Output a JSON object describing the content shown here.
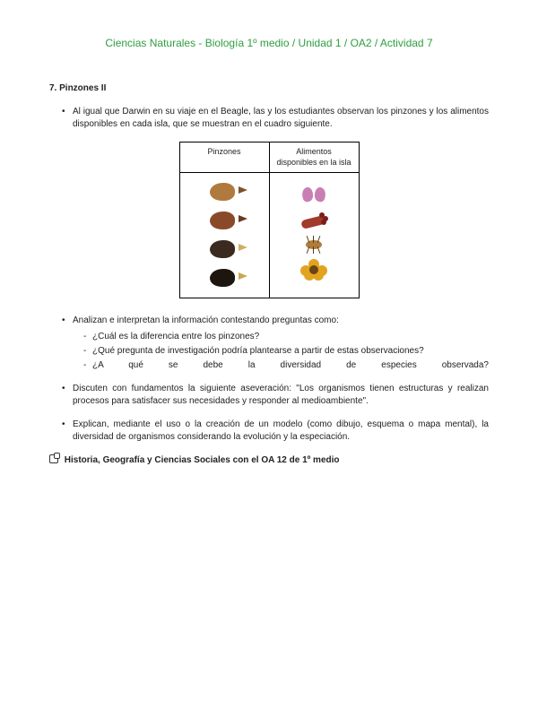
{
  "header": {
    "text": "Ciencias Naturales - Biología 1º medio / Unidad 1 / OA2 / Actividad 7",
    "color": "#2e9e3f"
  },
  "section": {
    "number": "7.",
    "title": "Pinzones II"
  },
  "bullets": {
    "intro": "Al igual que Darwin en su viaje en el Beagle, las y los estudiantes observan los pinzones y los alimentos disponibles en cada isla, que se muestran en el cuadro siguiente.",
    "analyze_lead": "Analizan e interpretan la información contestando preguntas como:",
    "questions": {
      "q1": "¿Cuál es la diferencia entre los pinzones?",
      "q2": "¿Qué pregunta de investigación podría plantearse a partir de estas observaciones?",
      "q3": "¿A qué se debe la diversidad de especies observada?"
    },
    "discuss": "Discuten con fundamentos la siguiente aseveración: \"Los organismos tienen estructuras y realizan procesos para satisfacer sus necesidades y responder al medioambiente\".",
    "explain": "Explican, mediante el uso o la creación de un modelo (como dibujo, esquema o mapa mental), la diversidad de organismos considerando la evolución y la especiación."
  },
  "table": {
    "headers": {
      "col1": "Pinzones",
      "col2": "Alimentos disponibles en la isla"
    },
    "finch_colors": [
      "#b07a3e",
      "#8a4a2a",
      "#3a2a20",
      "#1d1510"
    ],
    "beak_colors": [
      "#7c5226",
      "#6a3a20",
      "#d0b060",
      "#c8a850"
    ]
  },
  "cross_ref": {
    "text": "Historia, Geografía y Ciencias Sociales con el OA 12 de 1º medio"
  }
}
